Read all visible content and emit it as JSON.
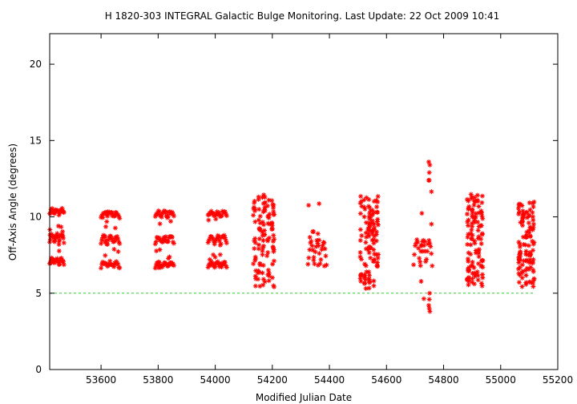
{
  "chart_data": {
    "type": "scatter",
    "title": "H 1820-303   INTEGRAL Galactic Bulge Monitoring.  Last Update: 22 Oct 2009 10:41",
    "xlabel": "Modified Julian Date",
    "ylabel": "Off-Axis Angle (degrees)",
    "xlim": [
      53420,
      55200
    ],
    "ylim": [
      0,
      22
    ],
    "x_ticks": [
      53600,
      53800,
      54000,
      54200,
      54400,
      54600,
      54800,
      55000,
      55200
    ],
    "y_ticks": [
      0,
      5,
      10,
      15,
      20
    ],
    "grid": false,
    "marker": "asterisk",
    "colors": {
      "points": "#ff0000",
      "reference_line": "#33cc33",
      "axes": "#000000"
    },
    "reference_line": {
      "y": 5,
      "x_range": [
        53420,
        55120
      ],
      "style": "dashed"
    },
    "visibility_windows": [
      {
        "x_range": [
          53420,
          53470
        ],
        "y_min": 6.6,
        "y_max": 10.6,
        "bands": [
          6.9,
          7.2,
          8.4,
          8.8,
          10.2,
          10.5
        ]
      },
      {
        "x_range": [
          53600,
          53665
        ],
        "y_min": 6.5,
        "y_max": 10.4,
        "bands": [
          6.7,
          7.0,
          8.2,
          8.7,
          10.0,
          10.3
        ]
      },
      {
        "x_range": [
          53790,
          53855
        ],
        "y_min": 6.5,
        "y_max": 10.4,
        "bands": [
          6.7,
          7.0,
          8.2,
          8.7,
          10.0,
          10.3
        ]
      },
      {
        "x_range": [
          53975,
          54040
        ],
        "y_min": 6.5,
        "y_max": 10.4,
        "bands": [
          6.7,
          7.0,
          8.2,
          8.7,
          10.0,
          10.3
        ]
      },
      {
        "x_range": [
          54130,
          54210
        ],
        "y_min": 5.3,
        "y_max": 11.5,
        "bands": []
      },
      {
        "x_range": [
          54325,
          54390
        ],
        "y_min": 5.9,
        "y_max": 11.2,
        "bands": [
          6.8,
          8.4,
          10.1
        ]
      },
      {
        "x_range": [
          54505,
          54575
        ],
        "y_min": 5.3,
        "y_max": 11.5,
        "bands": []
      },
      {
        "x_range": [
          54695,
          54760
        ],
        "y_min": 3.8,
        "y_max": 13.7,
        "bands": [
          6.9,
          8.4,
          10.2
        ]
      },
      {
        "x_range": [
          54880,
          54940
        ],
        "y_min": 5.4,
        "y_max": 11.5,
        "bands": []
      },
      {
        "x_range": [
          55060,
          55120
        ],
        "y_min": 5.4,
        "y_max": 11.0,
        "bands": []
      }
    ]
  }
}
